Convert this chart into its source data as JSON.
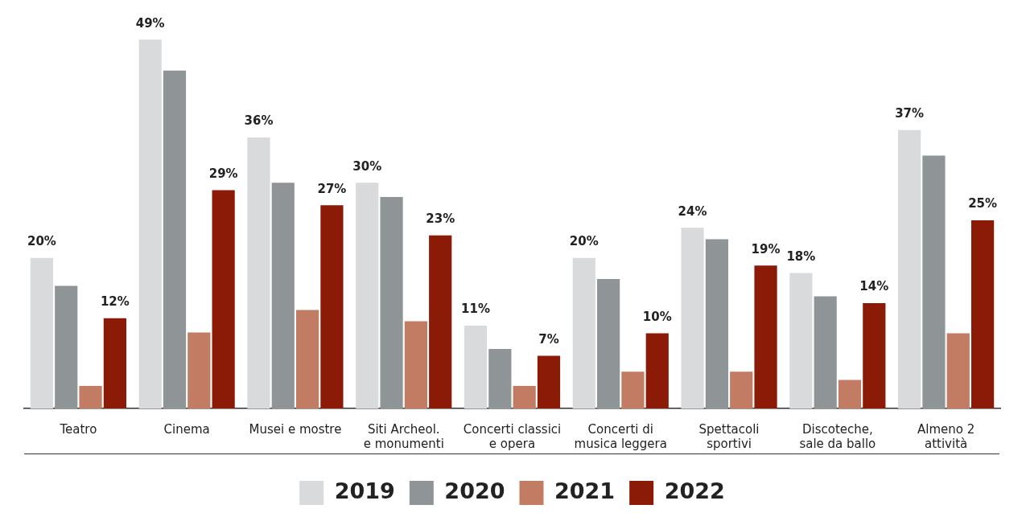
{
  "chart_data": {
    "type": "bar",
    "categories": [
      "Teatro",
      "Cinema",
      "Musei e mostre",
      "Siti Archeol.\ne monumenti",
      "Concerti classici\ne opera",
      "Concerti di\nmusica leggera",
      "Spettacoli\nsportivi",
      "Discoteche,\nsale da ballo",
      "Almeno 2\nattività"
    ],
    "series": [
      {
        "name": "2019",
        "color": "#d9dadc",
        "values": [
          20,
          49,
          36,
          30,
          11,
          20,
          24,
          18,
          37
        ],
        "value_labels": [
          "20%",
          "49%",
          "36%",
          "30%",
          "11%",
          "20%",
          "24%",
          "18%",
          "37%"
        ]
      },
      {
        "name": "2020",
        "color": "#8f9597",
        "values": [
          16.3,
          44.9,
          30,
          28.1,
          7.9,
          17.2,
          22.5,
          14.9,
          33.6
        ]
      },
      {
        "name": "2021",
        "color": "#c17c63",
        "values": [
          3,
          10.1,
          13.1,
          11.6,
          3,
          4.9,
          4.9,
          3.8,
          10
        ]
      },
      {
        "name": "2022",
        "color": "#8b1a06",
        "values": [
          12,
          29,
          27,
          23,
          7,
          10,
          19,
          14,
          25
        ],
        "value_labels": [
          "12%",
          "29%",
          "27%",
          "23%",
          "7%",
          "10%",
          "19%",
          "14%",
          "25%"
        ]
      }
    ],
    "legend": "bottom"
  }
}
